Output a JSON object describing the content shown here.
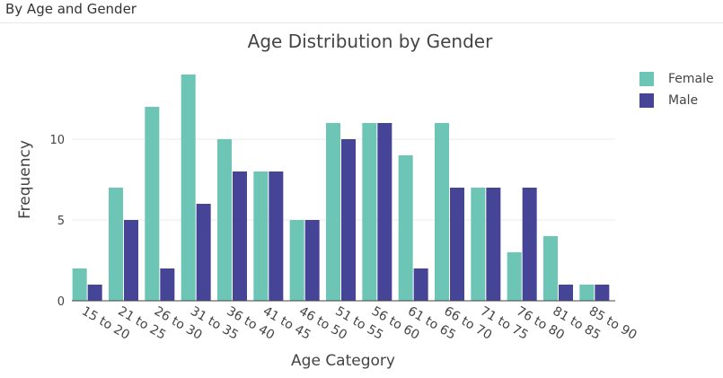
{
  "panel": {
    "title": "By Age and Gender"
  },
  "chart_data": {
    "type": "bar",
    "title": "Age Distribution by Gender",
    "xlabel": "Age Category",
    "ylabel": "Frequency",
    "ylim": [
      0,
      15
    ],
    "yticks": [
      0,
      5,
      10
    ],
    "grid": true,
    "legend_position": "top-right",
    "categories": [
      "15 to 20",
      "21 to 25",
      "26 to 30",
      "31 to 35",
      "36 to 40",
      "41 to 45",
      "46 to 50",
      "51 to 55",
      "56 to 60",
      "61 to 65",
      "66 to 70",
      "71 to 75",
      "76 to 80",
      "81 to 85",
      "85 to 90"
    ],
    "series": [
      {
        "name": "Female",
        "color": "#6cc5b5",
        "values": [
          2,
          7,
          12,
          14,
          10,
          8,
          5,
          11,
          11,
          9,
          11,
          7,
          3,
          4,
          1
        ]
      },
      {
        "name": "Male",
        "color": "#464496",
        "values": [
          1,
          5,
          2,
          6,
          8,
          8,
          5,
          10,
          11,
          2,
          7,
          7,
          7,
          1,
          1
        ]
      }
    ]
  }
}
